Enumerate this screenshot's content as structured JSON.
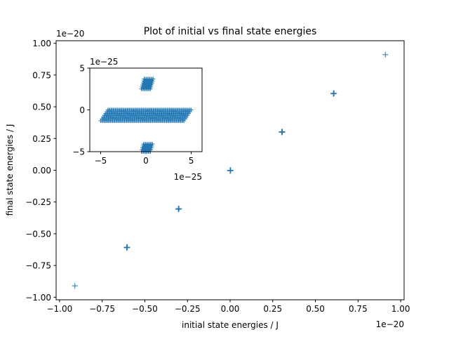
{
  "chart_data": [
    {
      "type": "scatter",
      "title": "Plot of initial vs final state energies",
      "xlabel": "initial state energies / J",
      "ylabel": "final state energies / J",
      "x_multiplier": "1e−20",
      "y_multiplier": "1e−20",
      "xlim": [
        -1.02,
        1.02
      ],
      "ylim": [
        -1.02,
        1.02
      ],
      "xticks": [
        -1.0,
        -0.75,
        -0.5,
        -0.25,
        0.0,
        0.25,
        0.5,
        0.75,
        1.0
      ],
      "xtick_labels": [
        "−1.00",
        "−0.75",
        "−0.50",
        "−0.25",
        "0.00",
        "0.25",
        "0.50",
        "0.75",
        "1.00"
      ],
      "yticks": [
        -1.0,
        -0.75,
        -0.5,
        -0.25,
        0.0,
        0.25,
        0.5,
        0.75,
        1.0
      ],
      "ytick_labels": [
        "−1.00",
        "−0.75",
        "−0.50",
        "−0.25",
        "0.00",
        "0.25",
        "0.50",
        "0.75",
        "1.00"
      ],
      "marker": "+",
      "color": "#1f77b4",
      "grid": false,
      "series": [
        {
          "x": [
            -0.91,
            -0.606,
            -0.303,
            0.0,
            0.303,
            0.606,
            0.91
          ],
          "y": [
            -0.91,
            -0.606,
            -0.303,
            0.0,
            0.303,
            0.606,
            0.91
          ]
        }
      ]
    },
    {
      "type": "scatter",
      "inset": true,
      "x_multiplier": "1e−25",
      "y_multiplier": "1e−25",
      "xlim": [
        -6.2,
        6.2
      ],
      "ylim": [
        -5.0,
        5.0
      ],
      "xticks": [
        -5,
        0,
        5
      ],
      "xtick_labels": [
        "−5",
        "0",
        "5"
      ],
      "yticks": [
        -5,
        0,
        5
      ],
      "ytick_labels": [
        "−5",
        "0",
        "5"
      ],
      "marker": "+",
      "color": "#1f77b4",
      "grid": false,
      "series": [
        {
          "shape": "bands",
          "bands": [
            {
              "x_from": -4.6,
              "x_to": 4.6,
              "y_from": -1.3,
              "y_to": 0.0,
              "slant": 0.8
            },
            {
              "x_from": -0.5,
              "x_to": 0.5,
              "y_from": 2.5,
              "y_to": 3.7,
              "slant": 0.0
            },
            {
              "x_from": -0.5,
              "x_to": 0.5,
              "y_from": -5.0,
              "y_to": -4.1,
              "slant": 0.0
            }
          ]
        }
      ]
    }
  ]
}
